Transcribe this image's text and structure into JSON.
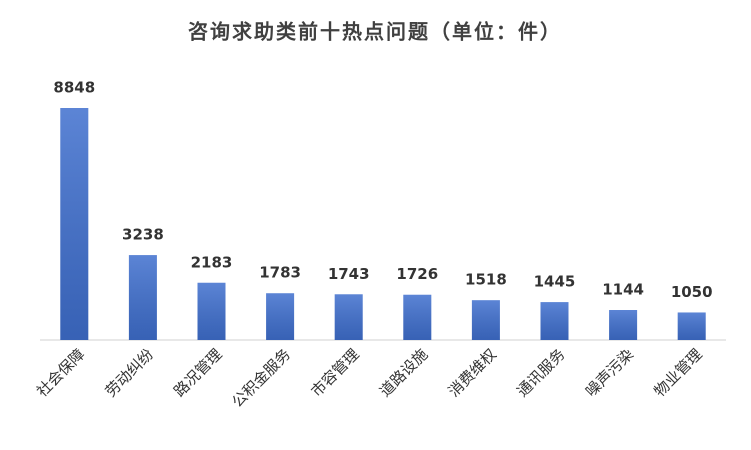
{
  "chart_data": {
    "type": "bar",
    "title": "咨询求助类前十热点问题（单位：件）",
    "categories": [
      "社会保障",
      "劳动纠纷",
      "路况管理",
      "公积金服务",
      "市容管理",
      "道路设施",
      "消费维权",
      "通讯服务",
      "噪声污染",
      "物业管理"
    ],
    "values": [
      8848,
      3238,
      2183,
      1783,
      1743,
      1726,
      1518,
      1445,
      1144,
      1050
    ],
    "color": "#3f6fce"
  }
}
